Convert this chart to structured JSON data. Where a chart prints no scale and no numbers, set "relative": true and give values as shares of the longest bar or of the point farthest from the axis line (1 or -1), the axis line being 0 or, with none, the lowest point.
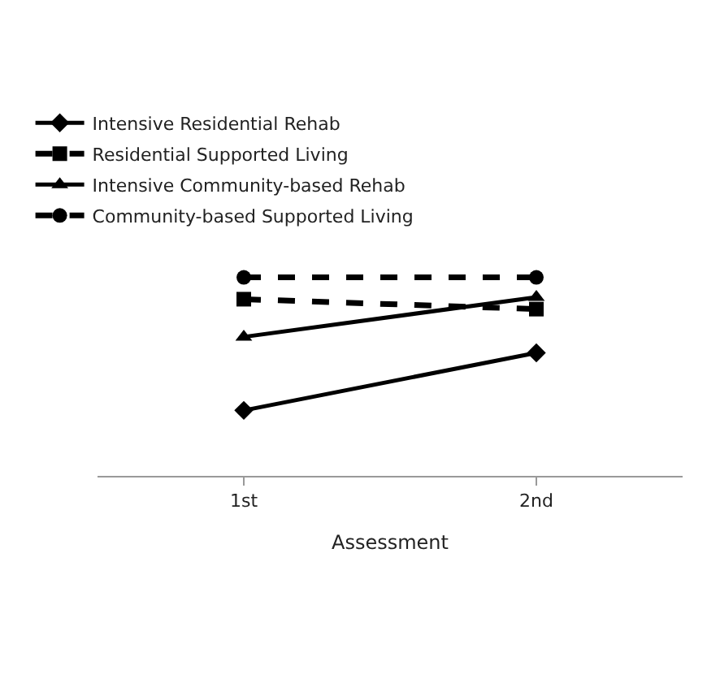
{
  "chart_data": {
    "type": "line",
    "xlabel": "Assessment",
    "categories": [
      "1st",
      "2nd"
    ],
    "relative": true,
    "legend": "top left",
    "series": [
      {
        "name": "Intensive Residential Rehab",
        "color": "#000000",
        "values": [
          0.33,
          0.62
        ],
        "marker": "diamond",
        "line_style": "solid"
      },
      {
        "name": "Residential Supported Living",
        "color": "#000000",
        "values": [
          0.89,
          0.84
        ],
        "marker": "square",
        "line_style": "dashed"
      },
      {
        "name": "Intensive Community-based Rehab",
        "color": "#000000",
        "values": [
          0.7,
          0.9
        ],
        "marker": "triangle",
        "line_style": "solid"
      },
      {
        "name": "Community-based Supported Living",
        "color": "#000000",
        "values": [
          1,
          1
        ],
        "marker": "circle",
        "line_style": "dashed"
      }
    ]
  }
}
